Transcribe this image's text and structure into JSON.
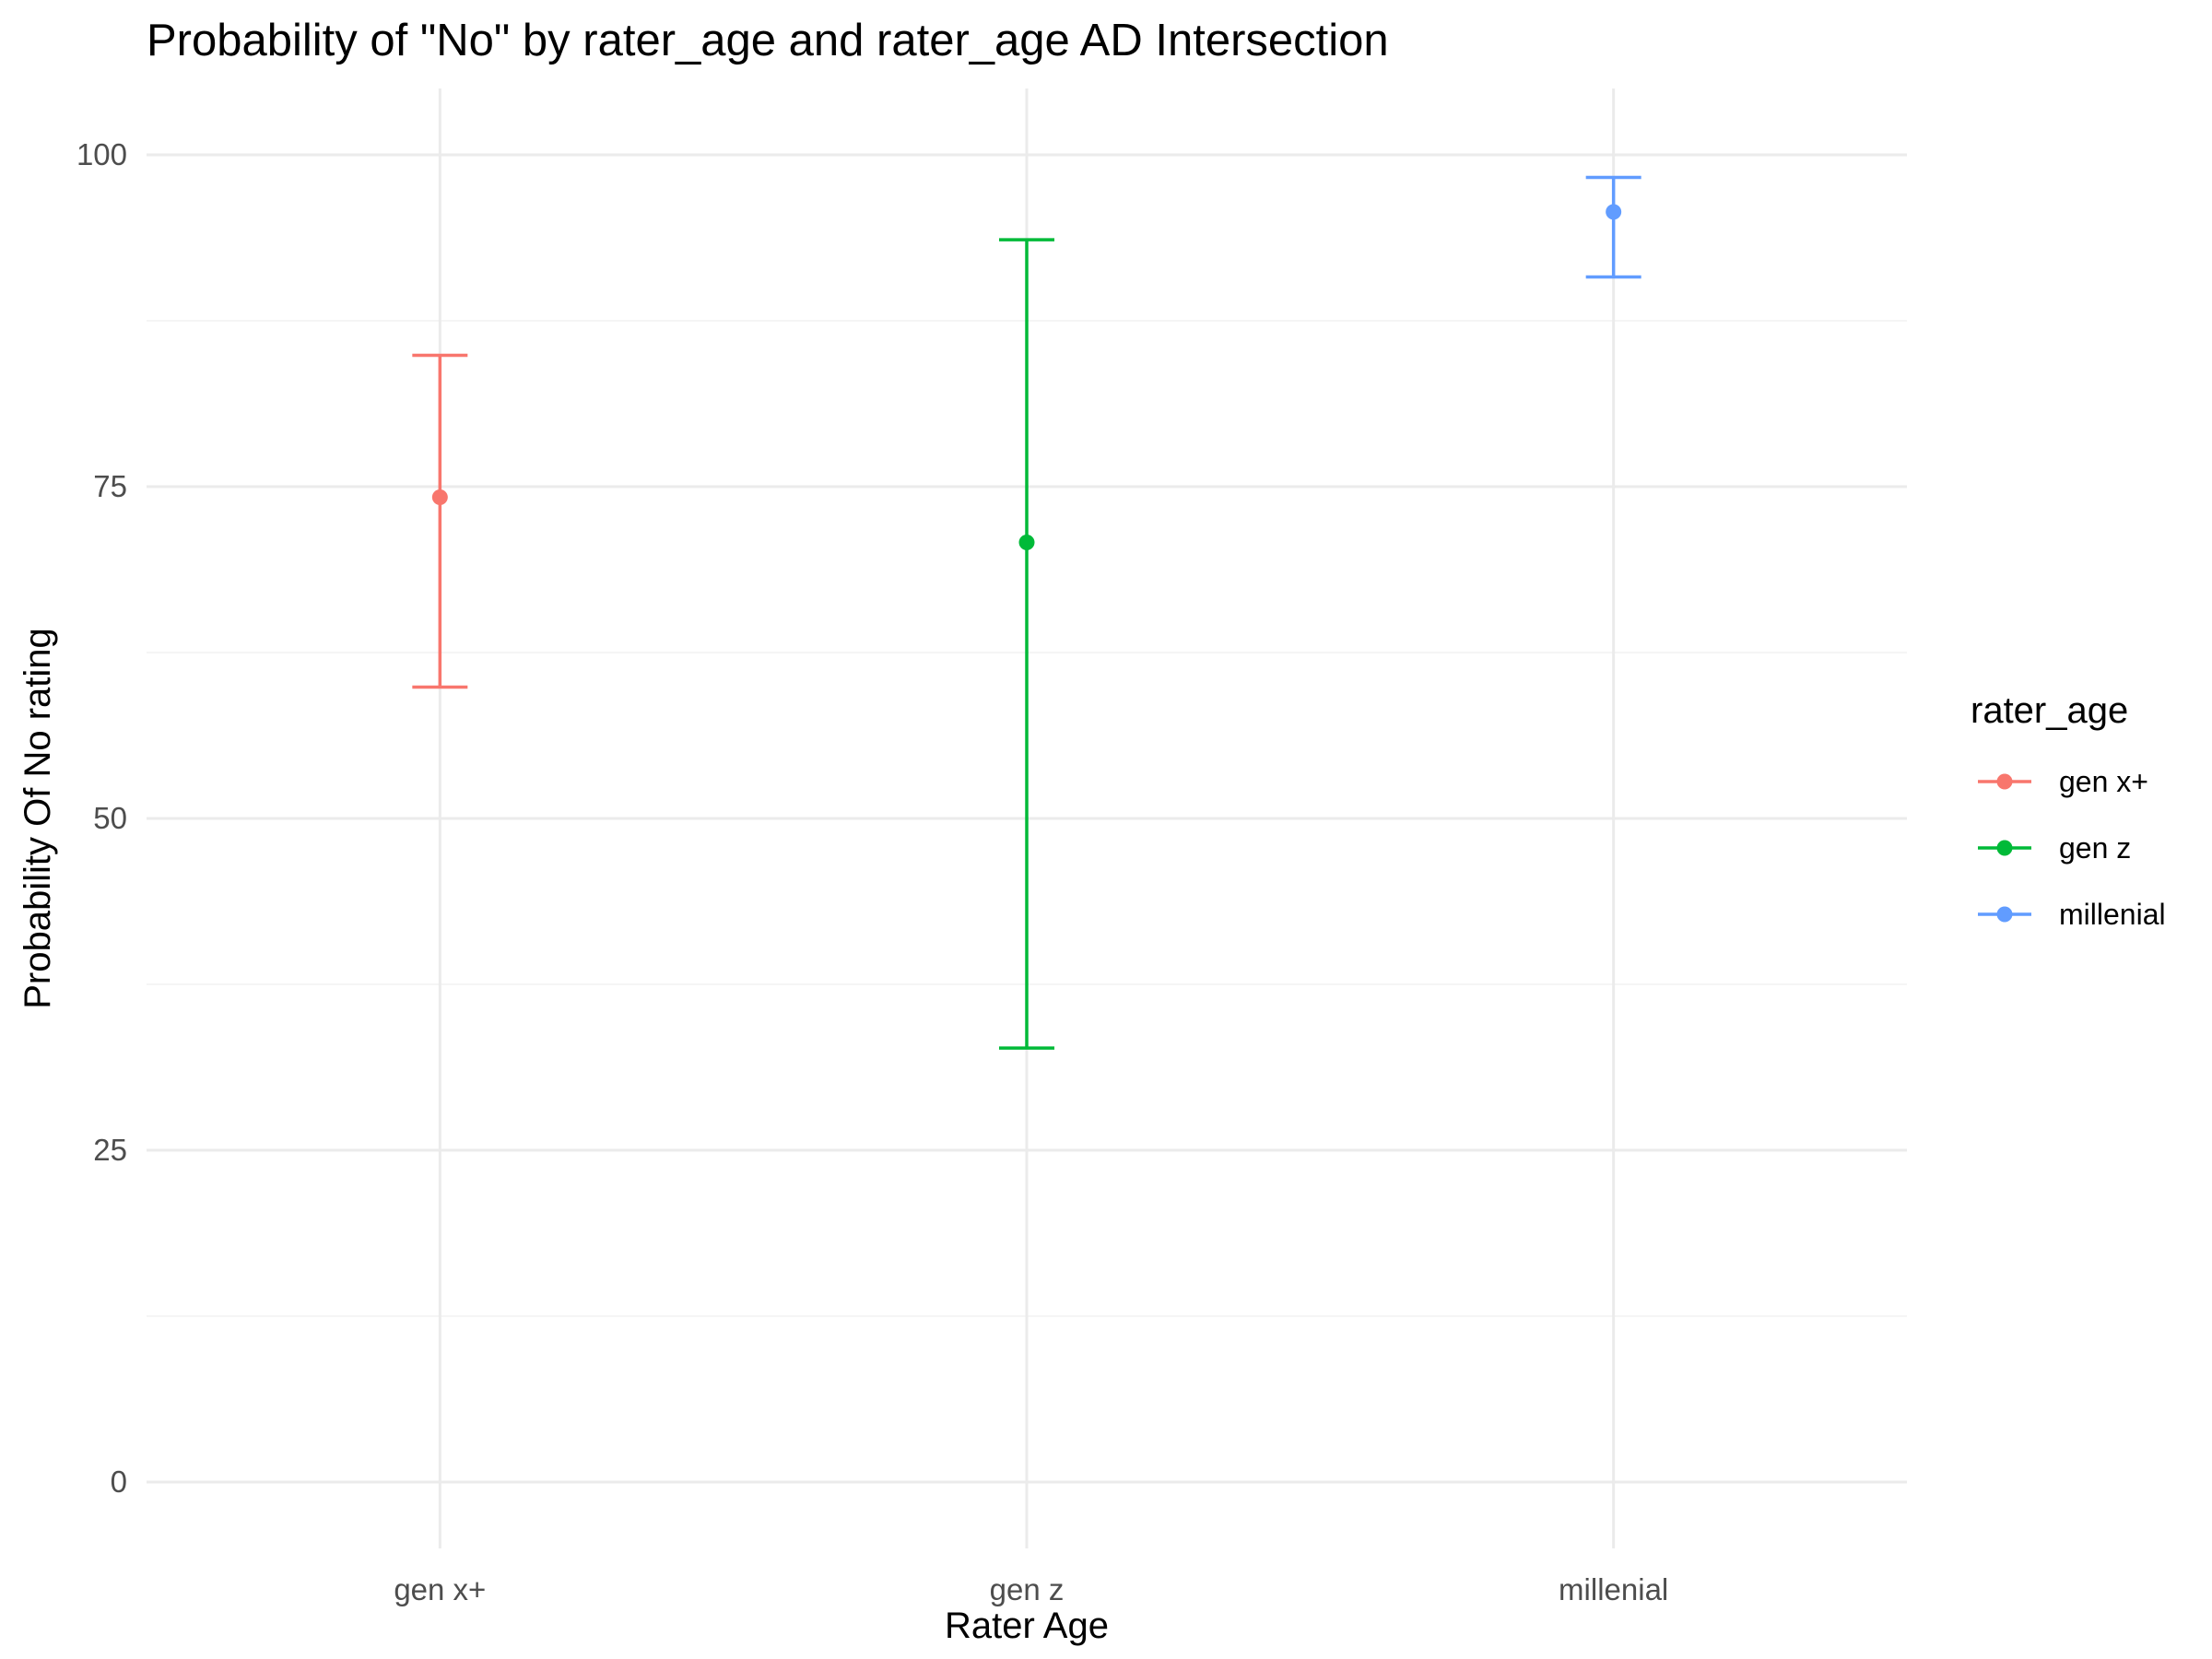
{
  "chart_data": {
    "type": "errorbar",
    "title": "Probability of \"No\" by rater_age and  rater_age  AD Intersection",
    "xlabel": "Rater Age",
    "ylabel": "Probability Of No rating",
    "categories": [
      "gen x+",
      "gen z",
      "millenial"
    ],
    "ylim": [
      -5,
      105
    ],
    "yticks": [
      0,
      25,
      50,
      75,
      100
    ],
    "yminor": [
      12.5,
      37.5,
      62.5,
      87.5
    ],
    "grid": true,
    "legend": {
      "title": "rater_age",
      "position": "right"
    },
    "series": [
      {
        "name": "gen x+",
        "category": "gen x+",
        "value": 74.2,
        "lower": 59.9,
        "upper": 84.9,
        "color": "#F8766D"
      },
      {
        "name": "gen z",
        "category": "gen z",
        "value": 70.8,
        "lower": 32.7,
        "upper": 93.6,
        "color": "#00BA38"
      },
      {
        "name": "millenial",
        "category": "millenial",
        "value": 95.7,
        "lower": 90.8,
        "upper": 98.3,
        "color": "#619CFF"
      }
    ]
  }
}
